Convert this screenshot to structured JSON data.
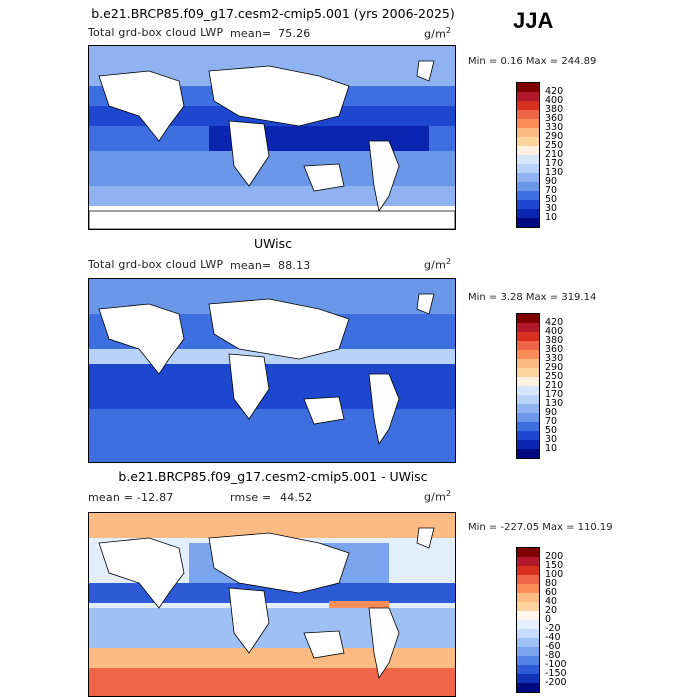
{
  "season": "JJA",
  "panels": [
    {
      "title": "b.e21.BRCP85.f09_g17.cesm2-cmip5.001 (yrs 2006-2025)",
      "left_label": "Total grd-box cloud LWP",
      "stat_label": "mean=",
      "stat_value": "75.26",
      "units": "g/m",
      "units_sup": "2",
      "minmax": "Min =    0.16 Max = 244.89",
      "colorbar_labels": [
        "420",
        "400",
        "380",
        "360",
        "330",
        "290",
        "250",
        "210",
        "170",
        "130",
        "90",
        "70",
        "50",
        "30",
        "10"
      ],
      "colorbar_colors": [
        "#7f0000",
        "#b2182b",
        "#d7301f",
        "#ef6548",
        "#fc8d59",
        "#fdbb84",
        "#fdd49e",
        "#fff0e0",
        "#d6e6fb",
        "#b9d2f7",
        "#8fb3f0",
        "#6a97e8",
        "#3d6fe0",
        "#1d47cf",
        "#0a26b0",
        "#000a80"
      ]
    },
    {
      "title": "UWisc",
      "left_label": "Total grd-box cloud LWP",
      "stat_label": "mean=",
      "stat_value": "88.13",
      "units": "g/m",
      "units_sup": "2",
      "minmax": "Min =    3.28 Max = 319.14",
      "colorbar_labels": [
        "420",
        "400",
        "380",
        "360",
        "330",
        "290",
        "250",
        "210",
        "170",
        "130",
        "90",
        "70",
        "50",
        "30",
        "10"
      ],
      "colorbar_colors": [
        "#7f0000",
        "#b2182b",
        "#d7301f",
        "#ef6548",
        "#fc8d59",
        "#fdbb84",
        "#fdd49e",
        "#fff0e0",
        "#d6e6fb",
        "#b9d2f7",
        "#8fb3f0",
        "#6a97e8",
        "#3d6fe0",
        "#1d47cf",
        "#0a26b0",
        "#000a80"
      ]
    },
    {
      "title": "b.e21.BRCP85.f09_g17.cesm2-cmip5.001 - UWisc",
      "left_label": "mean = -12.87",
      "stat_label": "rmse =",
      "stat_value": "44.52",
      "units": "g/m",
      "units_sup": "2",
      "minmax": "Min = -227.05 Max = 110.19",
      "colorbar_labels": [
        "200",
        "150",
        "100",
        "80",
        "60",
        "40",
        "20",
        "0",
        "-20",
        "-40",
        "-60",
        "-80",
        "-100",
        "-150",
        "-200"
      ],
      "colorbar_colors": [
        "#7f0000",
        "#b2182b",
        "#d7301f",
        "#ef6548",
        "#fc8d59",
        "#fdbb84",
        "#fdd49e",
        "#fff5eb",
        "#e3efff",
        "#c6dbff",
        "#9ec0f5",
        "#7aa4ee",
        "#5283e6",
        "#2d5ad6",
        "#1232b8",
        "#000a80"
      ]
    }
  ],
  "colors": {
    "land": "#ffffff",
    "coastline": "#000000",
    "ocean_low": "#0a26b0",
    "ocean_mid": "#3d6fe0",
    "ocean_light": "#8fb3f0",
    "diff_warm": "#ef6548"
  }
}
